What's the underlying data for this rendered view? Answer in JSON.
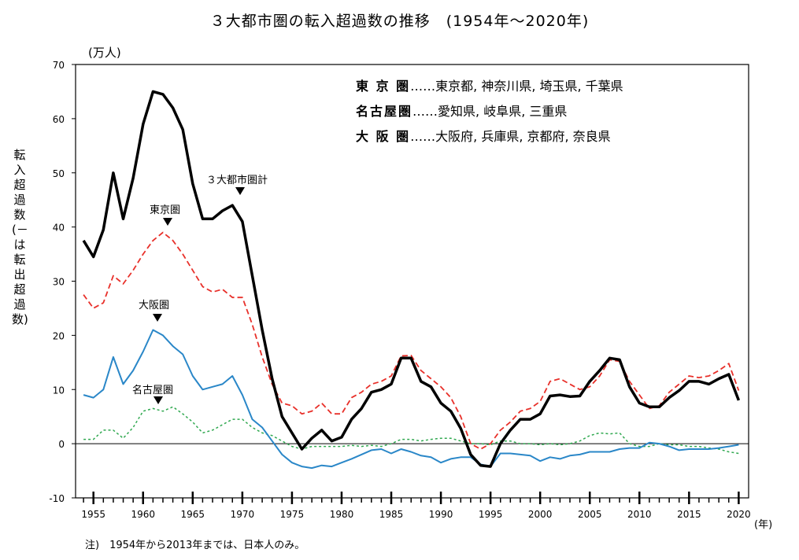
{
  "title": "３大都市圏の転入超過数の推移　(1954年～2020年)",
  "unit_label": "(万人)",
  "y_axis_label": "転入超過数(－は転出超過数)",
  "x_unit_label": "(年)",
  "note": "注)　1954年から2013年までは、日本人のみ。",
  "legend_definitions": [
    {
      "name": "東 京 圏",
      "members": "……東京都, 神奈川県, 埼玉県, 千葉県"
    },
    {
      "name": "名古屋圏",
      "members": "……愛知県, 岐阜県, 三重県"
    },
    {
      "name": "大 阪 圏",
      "members": "……大阪府, 兵庫県, 京都府, 奈良県"
    }
  ],
  "annotations": {
    "total": "３大都市圏計",
    "tokyo": "東京圏",
    "osaka": "大阪圏",
    "nagoya": "名古屋圏"
  },
  "colors": {
    "total": "#000000",
    "tokyo": "#e8302a",
    "osaka": "#2a87c8",
    "nagoya": "#2fa84f"
  },
  "chart_data": {
    "type": "line",
    "x": [
      1954,
      1955,
      1956,
      1957,
      1958,
      1959,
      1960,
      1961,
      1962,
      1963,
      1964,
      1965,
      1966,
      1967,
      1968,
      1969,
      1970,
      1971,
      1972,
      1973,
      1974,
      1975,
      1976,
      1977,
      1978,
      1979,
      1980,
      1981,
      1982,
      1983,
      1984,
      1985,
      1986,
      1987,
      1988,
      1989,
      1990,
      1991,
      1992,
      1993,
      1994,
      1995,
      1996,
      1997,
      1998,
      1999,
      2000,
      2001,
      2002,
      2003,
      2004,
      2005,
      2006,
      2007,
      2008,
      2009,
      2010,
      2011,
      2012,
      2013,
      2014,
      2015,
      2016,
      2017,
      2018,
      2019,
      2020
    ],
    "xticks": [
      1955,
      1960,
      1965,
      1970,
      1975,
      1980,
      1985,
      1990,
      1995,
      2000,
      2005,
      2010,
      2015,
      2020
    ],
    "ylim": [
      -10,
      70
    ],
    "yticks": [
      -10,
      0,
      10,
      20,
      30,
      40,
      50,
      60,
      70
    ],
    "grid": false,
    "series": [
      {
        "key": "total",
        "name": "３大都市圏計",
        "style": "solid-thick",
        "values": [
          37.5,
          34.5,
          39.5,
          50,
          41.5,
          49,
          59,
          65,
          64.5,
          62,
          58,
          48,
          41.5,
          41.5,
          43,
          44,
          41,
          31,
          21,
          12,
          5,
          2,
          -1,
          1,
          2.5,
          0.5,
          1.2,
          4.5,
          6.5,
          9.5,
          10,
          11,
          15.8,
          15.8,
          11.5,
          10.5,
          7.5,
          6,
          2.8,
          -2,
          -4,
          -4.2,
          0,
          2.5,
          4.5,
          4.5,
          5.5,
          8.8,
          9,
          8.7,
          8.8,
          11.5,
          13.5,
          15.8,
          15.5,
          10.5,
          7.5,
          6.8,
          6.8,
          8.5,
          9.8,
          11.5,
          11.5,
          11,
          12,
          12.8,
          8
        ]
      },
      {
        "key": "tokyo",
        "name": "東京圏",
        "style": "dashed",
        "values": [
          27.5,
          25,
          26,
          31,
          29.5,
          32,
          35,
          37.5,
          39,
          37.5,
          35,
          32,
          29,
          28,
          28.5,
          27,
          27,
          22,
          16,
          11,
          7.5,
          7,
          5.5,
          6,
          7.5,
          5.5,
          5.5,
          8.5,
          9.5,
          11,
          11.5,
          12.5,
          16.2,
          16.3,
          13.5,
          12,
          10.5,
          8.5,
          5,
          0,
          -1,
          0,
          2.5,
          4,
          6,
          6.5,
          7.8,
          11.5,
          12,
          11,
          10,
          10.5,
          12.5,
          15.5,
          15.2,
          11.5,
          9,
          6.5,
          7,
          9.5,
          11,
          12.5,
          12.2,
          12.5,
          13.5,
          14.8,
          9.8
        ]
      },
      {
        "key": "osaka",
        "name": "大阪圏",
        "style": "solid",
        "values": [
          9,
          8.5,
          10,
          16,
          11,
          13.5,
          17,
          21,
          20,
          18,
          16.5,
          12.5,
          10,
          10.5,
          11,
          12.5,
          9,
          4.5,
          3,
          0.5,
          -2,
          -3.5,
          -4.2,
          -4.5,
          -4,
          -4.2,
          -3.5,
          -2.8,
          -2,
          -1.2,
          -1,
          -1.8,
          -1,
          -1.5,
          -2.2,
          -2.5,
          -3.5,
          -2.8,
          -2.5,
          -2.5,
          -3.8,
          -4.2,
          -1.8,
          -1.8,
          -2,
          -2.2,
          -3.2,
          -2.5,
          -2.8,
          -2.2,
          -2,
          -1.5,
          -1.5,
          -1.5,
          -1,
          -0.8,
          -0.8,
          0.2,
          0,
          -0.5,
          -1.2,
          -1,
          -1,
          -1,
          -0.8,
          -0.5,
          -0.2
        ]
      },
      {
        "key": "nagoya",
        "name": "名古屋圏",
        "style": "dotted",
        "values": [
          0.8,
          0.8,
          2.5,
          2.5,
          1,
          3,
          6,
          6.5,
          6,
          6.8,
          5.5,
          4,
          2,
          2.5,
          3.5,
          4.5,
          4.5,
          3,
          2,
          1.5,
          0.5,
          -0.5,
          -1,
          -0.5,
          -0.5,
          -0.5,
          -0.5,
          -0.3,
          -0.5,
          -0.3,
          -0.5,
          0,
          0.8,
          0.8,
          0.5,
          0.8,
          1,
          1,
          0.5,
          0,
          0,
          -0.2,
          0.5,
          0.5,
          0,
          0,
          -0.2,
          0,
          -0.2,
          0,
          0.5,
          1.5,
          2,
          1.8,
          2,
          0,
          -0.5,
          -0.5,
          0,
          -0.2,
          -0.2,
          -0.5,
          -0.5,
          -0.8,
          -1,
          -1.5,
          -1.8
        ]
      }
    ]
  }
}
